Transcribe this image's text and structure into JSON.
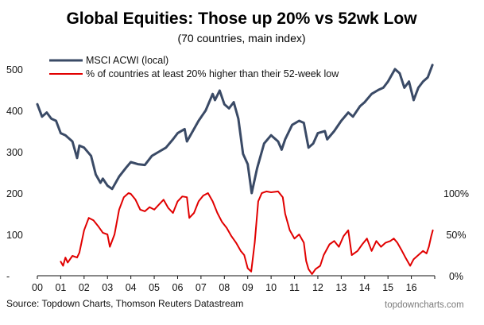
{
  "chart_data": {
    "type": "line",
    "title": "Global Equities: Those up 20% vs 52wk Low",
    "subtitle": "(70 countries, main index)",
    "x_ticks": [
      "00",
      "01",
      "02",
      "03",
      "04",
      "05",
      "06",
      "07",
      "08",
      "09",
      "10",
      "11",
      "12",
      "13",
      "14",
      "15",
      "16"
    ],
    "x_range": [
      2000,
      2017
    ],
    "y_left": {
      "range": [
        0,
        550
      ],
      "ticks": [
        {
          "value": 500,
          "label": "500"
        },
        {
          "value": 400,
          "label": "400"
        },
        {
          "value": 300,
          "label": "300"
        },
        {
          "value": 200,
          "label": "200"
        },
        {
          "value": 100,
          "label": "100"
        },
        {
          "value": 0,
          "label": "-"
        }
      ]
    },
    "y_right": {
      "range": [
        0,
        120
      ],
      "ticks": [
        {
          "value": 100,
          "label": "100%"
        },
        {
          "value": 50,
          "label": "50%"
        },
        {
          "value": 0,
          "label": "0%"
        }
      ]
    },
    "grid": false,
    "legend_position": "top-left",
    "series": [
      {
        "name": "MSCI ACWI (local)",
        "axis": "left",
        "color": "#3a4a66",
        "points": [
          [
            2000.0,
            415
          ],
          [
            2000.2,
            385
          ],
          [
            2000.4,
            395
          ],
          [
            2000.6,
            380
          ],
          [
            2000.8,
            375
          ],
          [
            2001.0,
            345
          ],
          [
            2001.2,
            340
          ],
          [
            2001.5,
            325
          ],
          [
            2001.7,
            285
          ],
          [
            2001.8,
            315
          ],
          [
            2002.0,
            310
          ],
          [
            2002.3,
            290
          ],
          [
            2002.5,
            245
          ],
          [
            2002.7,
            225
          ],
          [
            2002.8,
            235
          ],
          [
            2003.0,
            218
          ],
          [
            2003.2,
            210
          ],
          [
            2003.5,
            240
          ],
          [
            2003.8,
            262
          ],
          [
            2004.0,
            275
          ],
          [
            2004.3,
            270
          ],
          [
            2004.6,
            268
          ],
          [
            2004.9,
            290
          ],
          [
            2005.2,
            300
          ],
          [
            2005.5,
            310
          ],
          [
            2005.8,
            330
          ],
          [
            2006.0,
            345
          ],
          [
            2006.3,
            355
          ],
          [
            2006.4,
            325
          ],
          [
            2006.6,
            345
          ],
          [
            2006.9,
            375
          ],
          [
            2007.2,
            400
          ],
          [
            2007.5,
            440
          ],
          [
            2007.6,
            425
          ],
          [
            2007.8,
            448
          ],
          [
            2008.0,
            415
          ],
          [
            2008.2,
            405
          ],
          [
            2008.4,
            420
          ],
          [
            2008.6,
            380
          ],
          [
            2008.8,
            295
          ],
          [
            2009.0,
            270
          ],
          [
            2009.17,
            200
          ],
          [
            2009.4,
            260
          ],
          [
            2009.7,
            320
          ],
          [
            2010.0,
            340
          ],
          [
            2010.3,
            325
          ],
          [
            2010.45,
            305
          ],
          [
            2010.6,
            330
          ],
          [
            2010.9,
            365
          ],
          [
            2011.2,
            375
          ],
          [
            2011.4,
            370
          ],
          [
            2011.6,
            310
          ],
          [
            2011.8,
            320
          ],
          [
            2012.0,
            345
          ],
          [
            2012.3,
            350
          ],
          [
            2012.4,
            330
          ],
          [
            2012.7,
            350
          ],
          [
            2013.0,
            375
          ],
          [
            2013.3,
            395
          ],
          [
            2013.5,
            385
          ],
          [
            2013.8,
            410
          ],
          [
            2014.0,
            420
          ],
          [
            2014.3,
            440
          ],
          [
            2014.6,
            450
          ],
          [
            2014.8,
            455
          ],
          [
            2015.0,
            470
          ],
          [
            2015.3,
            500
          ],
          [
            2015.5,
            490
          ],
          [
            2015.7,
            455
          ],
          [
            2015.9,
            470
          ],
          [
            2016.1,
            425
          ],
          [
            2016.3,
            455
          ],
          [
            2016.5,
            470
          ],
          [
            2016.7,
            480
          ],
          [
            2016.9,
            510
          ]
        ]
      },
      {
        "name": "% of countries at least 20% higher than their 52-week low",
        "axis": "right",
        "color": "#e10000",
        "points": [
          [
            2001.0,
            17
          ],
          [
            2001.1,
            12
          ],
          [
            2001.2,
            22
          ],
          [
            2001.3,
            16
          ],
          [
            2001.5,
            24
          ],
          [
            2001.7,
            22
          ],
          [
            2001.8,
            28
          ],
          [
            2002.0,
            55
          ],
          [
            2002.2,
            70
          ],
          [
            2002.4,
            67
          ],
          [
            2002.6,
            60
          ],
          [
            2002.8,
            52
          ],
          [
            2003.0,
            50
          ],
          [
            2003.1,
            35
          ],
          [
            2003.3,
            50
          ],
          [
            2003.5,
            80
          ],
          [
            2003.7,
            95
          ],
          [
            2003.9,
            100
          ],
          [
            2004.0,
            99
          ],
          [
            2004.2,
            92
          ],
          [
            2004.4,
            80
          ],
          [
            2004.6,
            78
          ],
          [
            2004.8,
            83
          ],
          [
            2005.0,
            80
          ],
          [
            2005.2,
            86
          ],
          [
            2005.4,
            92
          ],
          [
            2005.6,
            82
          ],
          [
            2005.8,
            76
          ],
          [
            2006.0,
            90
          ],
          [
            2006.2,
            96
          ],
          [
            2006.4,
            95
          ],
          [
            2006.5,
            70
          ],
          [
            2006.7,
            76
          ],
          [
            2006.9,
            90
          ],
          [
            2007.1,
            97
          ],
          [
            2007.3,
            100
          ],
          [
            2007.5,
            90
          ],
          [
            2007.7,
            76
          ],
          [
            2007.9,
            65
          ],
          [
            2008.1,
            58
          ],
          [
            2008.3,
            48
          ],
          [
            2008.5,
            40
          ],
          [
            2008.7,
            30
          ],
          [
            2008.85,
            25
          ],
          [
            2009.0,
            9
          ],
          [
            2009.15,
            5
          ],
          [
            2009.3,
            40
          ],
          [
            2009.45,
            90
          ],
          [
            2009.6,
            100
          ],
          [
            2009.8,
            102
          ],
          [
            2010.0,
            101
          ],
          [
            2010.3,
            102
          ],
          [
            2010.5,
            95
          ],
          [
            2010.6,
            75
          ],
          [
            2010.8,
            55
          ],
          [
            2011.0,
            45
          ],
          [
            2011.2,
            50
          ],
          [
            2011.4,
            40
          ],
          [
            2011.5,
            18
          ],
          [
            2011.6,
            8
          ],
          [
            2011.75,
            2
          ],
          [
            2011.9,
            8
          ],
          [
            2012.1,
            12
          ],
          [
            2012.25,
            25
          ],
          [
            2012.5,
            38
          ],
          [
            2012.7,
            42
          ],
          [
            2012.9,
            35
          ],
          [
            2013.1,
            48
          ],
          [
            2013.3,
            55
          ],
          [
            2013.45,
            25
          ],
          [
            2013.7,
            30
          ],
          [
            2013.9,
            38
          ],
          [
            2014.1,
            45
          ],
          [
            2014.3,
            30
          ],
          [
            2014.5,
            42
          ],
          [
            2014.7,
            35
          ],
          [
            2014.9,
            40
          ],
          [
            2015.1,
            42
          ],
          [
            2015.25,
            45
          ],
          [
            2015.4,
            40
          ],
          [
            2015.6,
            30
          ],
          [
            2015.75,
            22
          ],
          [
            2015.95,
            12
          ],
          [
            2016.1,
            20
          ],
          [
            2016.3,
            25
          ],
          [
            2016.5,
            30
          ],
          [
            2016.65,
            27
          ],
          [
            2016.75,
            35
          ],
          [
            2016.85,
            48
          ],
          [
            2016.92,
            55
          ]
        ]
      }
    ],
    "source": "Source: Topdown Charts, Thomson Reuters Datastream",
    "credit": "topdowncharts.com"
  }
}
